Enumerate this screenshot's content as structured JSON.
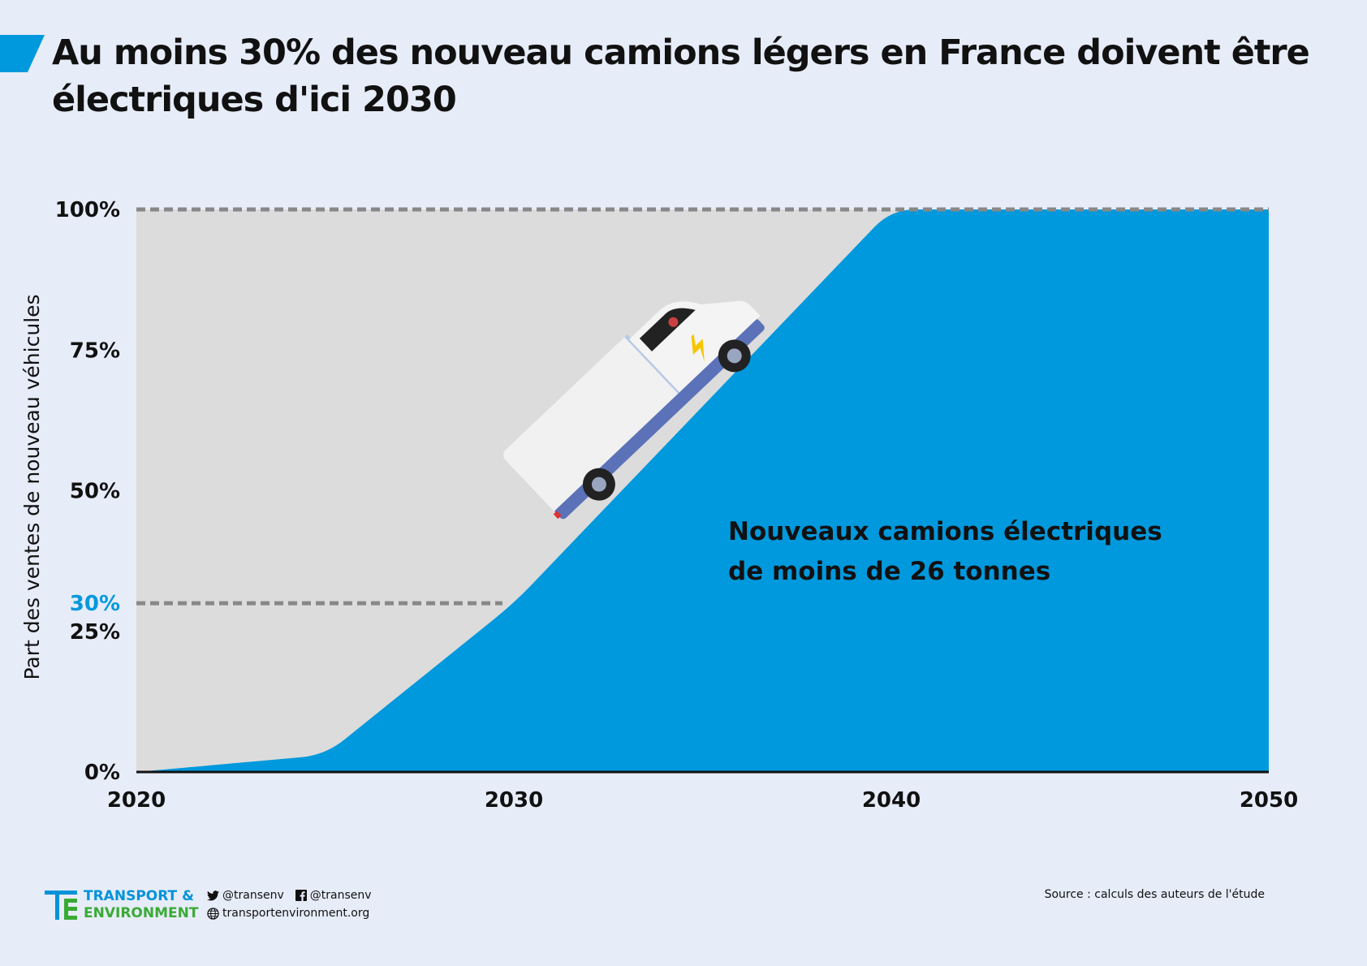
{
  "title": "Au moins 30% des nouveau camions légers en France doivent être électriques d'ici 2030",
  "chart_data": {
    "type": "area",
    "ylabel": "Part des ventes de nouveau véhicules",
    "x_ticks": [
      "2020",
      "2030",
      "2040",
      "2050"
    ],
    "y_ticks": [
      "0%",
      "25%",
      "50%",
      "75%",
      "100%"
    ],
    "highlight_tick": "30%",
    "xlim": [
      2020,
      2050
    ],
    "ylim": [
      0,
      100
    ],
    "series": [
      {
        "values_x": [
          2020,
          2025,
          2030,
          2040,
          2050
        ],
        "values_y": [
          0,
          3,
          30,
          100,
          100
        ]
      }
    ],
    "reference_lines": [
      100,
      30
    ],
    "annotation_line1": "Nouveaux camions électriques",
    "annotation_line2": "de moins de 26 tonnes",
    "colors": {
      "area": "#0099dd",
      "background": "#dcdcdc",
      "highlight": "#0099dd"
    }
  },
  "footer": {
    "logo_line1": "TRANSPORT &",
    "logo_line2": "ENVIRONMENT",
    "twitter": "@transenv",
    "facebook": "@transenv",
    "website": "transportenvironment.org",
    "source": "Source : calculs des auteurs de l'étude"
  }
}
